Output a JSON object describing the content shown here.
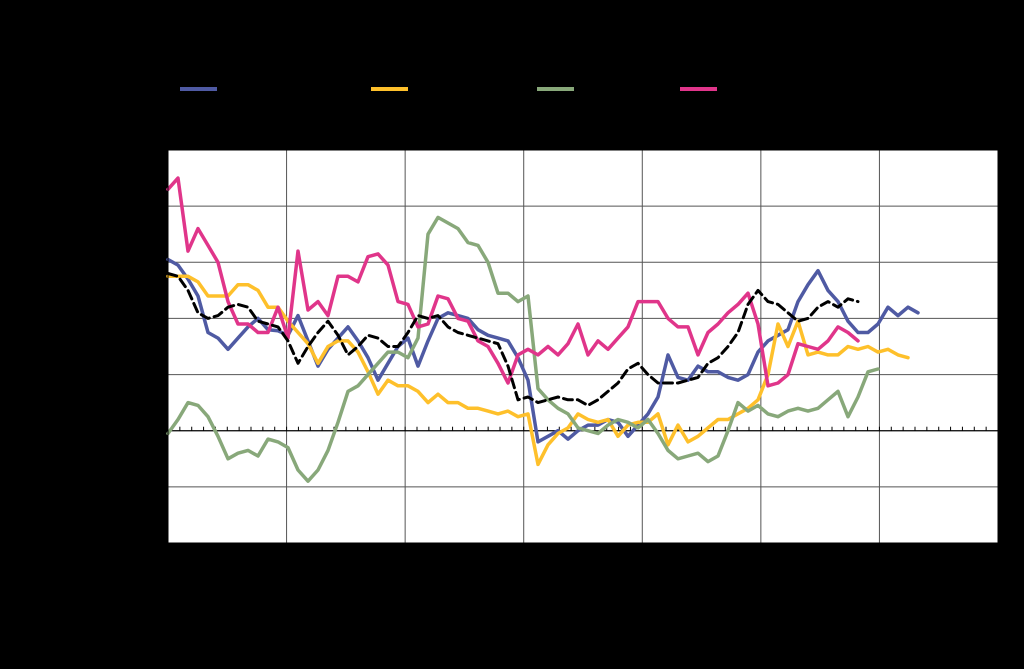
{
  "chart_data": {
    "type": "line",
    "title": "",
    "xlabel": "",
    "ylabel": "",
    "legend_position": "top",
    "grid": true,
    "plot_background": "#ffffff",
    "page_background": "#000000",
    "x_count": 83,
    "xlim": [
      0,
      83
    ],
    "ylim": [
      -2,
      5
    ],
    "zero_line": 0,
    "series": [
      {
        "key": "blue",
        "color": "#4f5aa3",
        "dashed": false,
        "values": [
          3.05,
          2.95,
          2.7,
          2.4,
          1.75,
          1.65,
          1.45,
          1.65,
          1.85,
          2.0,
          1.8,
          1.78,
          1.7,
          2.05,
          1.6,
          1.15,
          1.45,
          1.65,
          1.85,
          1.6,
          1.3,
          0.9,
          1.2,
          1.5,
          1.65,
          1.15,
          1.6,
          2.0,
          2.1,
          2.05,
          2.0,
          1.8,
          1.7,
          1.65,
          1.6,
          1.3,
          0.9,
          -0.2,
          -0.1,
          0.0,
          -0.15,
          0.0,
          0.1,
          0.1,
          0.2,
          0.15,
          -0.1,
          0.1,
          0.3,
          0.6,
          1.35,
          0.95,
          0.9,
          1.15,
          1.05,
          1.05,
          0.95,
          0.9,
          1.0,
          1.4,
          1.6,
          1.7,
          1.8,
          2.3,
          2.6,
          2.85,
          2.5,
          2.3,
          1.95,
          1.75,
          1.75,
          1.9,
          2.2,
          2.05,
          2.2,
          2.1
        ]
      },
      {
        "key": "yellow",
        "color": "#fec02b",
        "dashed": false,
        "values": [
          2.75,
          2.75,
          2.75,
          2.65,
          2.4,
          2.4,
          2.4,
          2.6,
          2.6,
          2.5,
          2.2,
          2.2,
          1.95,
          1.75,
          1.55,
          1.2,
          1.5,
          1.6,
          1.6,
          1.4,
          1.05,
          0.65,
          0.9,
          0.8,
          0.8,
          0.7,
          0.5,
          0.65,
          0.5,
          0.5,
          0.4,
          0.4,
          0.35,
          0.3,
          0.35,
          0.25,
          0.3,
          -0.6,
          -0.25,
          -0.05,
          0.05,
          0.3,
          0.2,
          0.15,
          0.2,
          -0.1,
          0.1,
          0.15,
          0.15,
          0.3,
          -0.25,
          0.1,
          -0.2,
          -0.1,
          0.05,
          0.2,
          0.2,
          0.3,
          0.4,
          0.55,
          1.0,
          1.9,
          1.5,
          1.95,
          1.35,
          1.4,
          1.35,
          1.35,
          1.5,
          1.45,
          1.5,
          1.4,
          1.45,
          1.35,
          1.3
        ]
      },
      {
        "key": "green",
        "color": "#88a87a",
        "dashed": false,
        "values": [
          -0.05,
          0.2,
          0.5,
          0.45,
          0.25,
          -0.1,
          -0.5,
          -0.4,
          -0.35,
          -0.45,
          -0.15,
          -0.2,
          -0.3,
          -0.7,
          -0.9,
          -0.7,
          -0.35,
          0.15,
          0.7,
          0.8,
          1.0,
          1.2,
          1.4,
          1.4,
          1.3,
          1.65,
          3.5,
          3.8,
          3.7,
          3.6,
          3.35,
          3.3,
          3.0,
          2.45,
          2.45,
          2.3,
          2.4,
          0.75,
          0.55,
          0.4,
          0.3,
          0.05,
          0.0,
          -0.05,
          0.1,
          0.2,
          0.15,
          0.05,
          0.2,
          -0.05,
          -0.35,
          -0.5,
          -0.45,
          -0.4,
          -0.55,
          -0.45,
          0.0,
          0.5,
          0.35,
          0.45,
          0.3,
          0.25,
          0.35,
          0.4,
          0.35,
          0.4,
          0.55,
          0.7,
          0.25,
          0.6,
          1.05,
          1.1
        ]
      },
      {
        "key": "pink",
        "color": "#e0358a",
        "dashed": false,
        "values": [
          4.3,
          4.5,
          3.2,
          3.6,
          3.3,
          3.0,
          2.3,
          1.9,
          1.9,
          1.75,
          1.75,
          2.2,
          1.65,
          3.2,
          2.15,
          2.3,
          2.05,
          2.75,
          2.75,
          2.65,
          3.1,
          3.15,
          2.95,
          2.3,
          2.25,
          1.85,
          1.9,
          2.4,
          2.35,
          2.0,
          1.95,
          1.6,
          1.5,
          1.2,
          0.85,
          1.35,
          1.45,
          1.35,
          1.5,
          1.35,
          1.55,
          1.9,
          1.35,
          1.6,
          1.45,
          1.65,
          1.85,
          2.3,
          2.3,
          2.3,
          2.0,
          1.85,
          1.85,
          1.35,
          1.75,
          1.9,
          2.1,
          2.25,
          2.45,
          1.9,
          0.8,
          0.85,
          1.0,
          1.55,
          1.5,
          1.45,
          1.6,
          1.85,
          1.75,
          1.6
        ]
      },
      {
        "key": "average",
        "color": "#000000",
        "dashed": true,
        "values": [
          2.8,
          2.75,
          2.5,
          2.1,
          2.0,
          2.05,
          2.2,
          2.25,
          2.2,
          1.95,
          1.9,
          1.85,
          1.6,
          1.2,
          1.5,
          1.75,
          1.95,
          1.7,
          1.35,
          1.5,
          1.7,
          1.65,
          1.5,
          1.5,
          1.75,
          2.05,
          2.0,
          2.05,
          1.85,
          1.75,
          1.7,
          1.65,
          1.6,
          1.55,
          1.15,
          0.55,
          0.6,
          0.5,
          0.55,
          0.6,
          0.55,
          0.55,
          0.45,
          0.55,
          0.7,
          0.85,
          1.1,
          1.2,
          1.0,
          0.85,
          0.85,
          0.85,
          0.9,
          0.95,
          1.2,
          1.3,
          1.5,
          1.75,
          2.25,
          2.5,
          2.3,
          2.25,
          2.1,
          1.95,
          2.0,
          2.2,
          2.3,
          2.2,
          2.35,
          2.3
        ]
      }
    ]
  }
}
